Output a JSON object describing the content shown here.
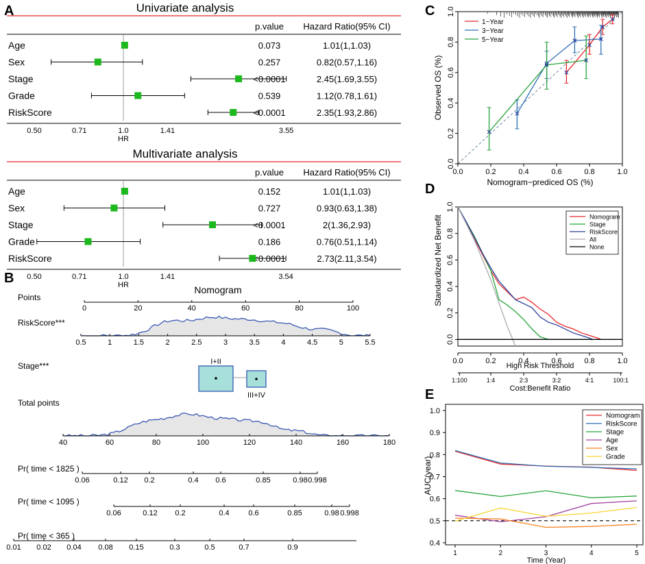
{
  "panel_labels": [
    "A",
    "B",
    "C",
    "D",
    "E"
  ],
  "chart_data": [
    {
      "id": "A1",
      "type": "forest",
      "title": "Univariate analysis",
      "col_pvalue": "p.value",
      "col_hr": "Hazard Ratio(95% CI)",
      "xlabel": "HR",
      "xticks": [
        "0.50",
        "0.71",
        "1.0",
        "1.41",
        "3.55"
      ],
      "xtick_values": [
        0.5,
        0.71,
        1.0,
        1.41,
        3.55
      ],
      "rows": [
        {
          "label": "Age",
          "p": "0.073",
          "hr_text": "1.01(1,1.03)",
          "hr": 1.01,
          "lo": 1.0,
          "hi": 1.03
        },
        {
          "label": "Sex",
          "p": "0.257",
          "hr_text": "0.82(0.57,1.16)",
          "hr": 0.82,
          "lo": 0.57,
          "hi": 1.16
        },
        {
          "label": "Stage",
          "p": "<0.0001",
          "hr_text": "2.45(1.69,3.55)",
          "hr": 2.45,
          "lo": 1.69,
          "hi": 3.55
        },
        {
          "label": "Grade",
          "p": "0.539",
          "hr_text": "1.12(0.78,1.61)",
          "hr": 1.12,
          "lo": 0.78,
          "hi": 1.61
        },
        {
          "label": "RiskScore",
          "p": "<0.0001",
          "hr_text": "2.35(1.93,2.86)",
          "hr": 2.35,
          "lo": 1.93,
          "hi": 2.86
        }
      ]
    },
    {
      "id": "A2",
      "type": "forest",
      "title": "Multivariate analysis",
      "col_pvalue": "p.value",
      "col_hr": "Hazard Ratio(95% CI)",
      "xlabel": "HR",
      "xticks": [
        "0.50",
        "0.71",
        "1.0",
        "1.41",
        "3.54"
      ],
      "xtick_values": [
        0.5,
        0.71,
        1.0,
        1.41,
        3.54
      ],
      "rows": [
        {
          "label": "Age",
          "p": "0.152",
          "hr_text": "1.01(1,1.03)",
          "hr": 1.01,
          "lo": 1.0,
          "hi": 1.03
        },
        {
          "label": "Sex",
          "p": "0.727",
          "hr_text": "0.93(0.63,1.38)",
          "hr": 0.93,
          "lo": 0.63,
          "hi": 1.38
        },
        {
          "label": "Stage",
          "p": "<0.0001",
          "hr_text": "2(1.36,2.93)",
          "hr": 2.0,
          "lo": 1.36,
          "hi": 2.93
        },
        {
          "label": "Grade",
          "p": "0.186",
          "hr_text": "0.76(0.51,1.14)",
          "hr": 0.76,
          "lo": 0.51,
          "hi": 1.14
        },
        {
          "label": "RiskScore",
          "p": "<0.0001",
          "hr_text": "2.73(2.11,3.54)",
          "hr": 2.73,
          "lo": 2.11,
          "hi": 3.54
        }
      ]
    },
    {
      "id": "B",
      "type": "nomogram",
      "title": "Nomogram",
      "rows": [
        {
          "label": "Points",
          "kind": "axis",
          "dmin": 0,
          "dmax": 100,
          "ticks": [
            0,
            20,
            40,
            60,
            80,
            100
          ],
          "tick_labels": [
            "0",
            "20",
            "40",
            "60",
            "80",
            "100"
          ]
        },
        {
          "label": "RiskScore***",
          "kind": "density",
          "dmin": 0.5,
          "dmax": 5.5,
          "ticks": [
            0.5,
            1,
            1.5,
            2,
            2.5,
            3,
            3.5,
            4,
            4.5,
            5,
            5.5
          ],
          "tick_labels": [
            "0.5",
            "1",
            "1.5",
            "2",
            "2.5",
            "3",
            "3.5",
            "4",
            "4.5",
            "5",
            "5.5"
          ]
        },
        {
          "label": "Stage***",
          "kind": "boxes",
          "categories": [
            "I+II",
            "III+IV"
          ],
          "points": [
            48,
            64
          ]
        },
        {
          "label": "Total points",
          "kind": "density",
          "dmin": 40,
          "dmax": 180,
          "ticks": [
            40,
            60,
            80,
            100,
            120,
            140,
            160,
            180
          ],
          "tick_labels": [
            "40",
            "60",
            "80",
            "100",
            "120",
            "140",
            "160",
            "180"
          ]
        },
        {
          "label": "Pr( time < 1825 )",
          "kind": "prob",
          "tick_labels": [
            "0.06",
            "0.12",
            "0.2",
            "0.4",
            "0.6",
            "0.85",
            "0.98",
            "0.998"
          ]
        },
        {
          "label": "Pr( time < 1095 )",
          "kind": "prob",
          "tick_labels": [
            "0.06",
            "0.12",
            "0.2",
            "0.4",
            "0.6",
            "0.85",
            "0.98",
            "0.998"
          ]
        },
        {
          "label": "Pr( time < 365 )",
          "kind": "prob",
          "tick_labels": [
            "0.01",
            "0.02",
            "0.04",
            "0.08",
            "0.15",
            "0.3",
            "0.5",
            "0.7",
            "0.9"
          ]
        }
      ]
    },
    {
      "id": "C",
      "type": "line",
      "xlabel": "Nomogram−prediced OS (%)",
      "ylabel": "Observed OS (%)",
      "xlim": [
        0,
        1
      ],
      "ylim": [
        0,
        1
      ],
      "xticks": [
        "0.0",
        "0.2",
        "0.4",
        "0.6",
        "0.8",
        "1.0"
      ],
      "yticks": [
        "0.0",
        "0.2",
        "0.4",
        "0.6",
        "0.8",
        "1.0"
      ],
      "series": [
        {
          "name": "1−Year",
          "color": "#e8262a",
          "x": [
            0.66,
            0.8,
            0.88,
            0.94
          ],
          "y": [
            0.6,
            0.78,
            0.9,
            0.95
          ],
          "lo": [
            0.53,
            0.72,
            0.85,
            0.92
          ],
          "hi": [
            0.68,
            0.85,
            0.95,
            0.98
          ]
        },
        {
          "name": "3−Year",
          "color": "#2a6fb5",
          "x": [
            0.36,
            0.54,
            0.71,
            0.87
          ],
          "y": [
            0.33,
            0.66,
            0.81,
            0.82
          ],
          "lo": [
            0.23,
            0.56,
            0.73,
            0.72
          ],
          "hi": [
            0.42,
            0.74,
            0.9,
            0.91
          ]
        },
        {
          "name": "5−Year",
          "color": "#24a33a",
          "x": [
            0.19,
            0.54,
            0.78
          ],
          "y": [
            0.21,
            0.65,
            0.68
          ],
          "lo": [
            0.09,
            0.49,
            0.56
          ],
          "hi": [
            0.37,
            0.8,
            0.84
          ]
        }
      ]
    },
    {
      "id": "D",
      "type": "line",
      "xlabel": "High Risk Threshold",
      "ylabel": "Standardized Net Benefit",
      "second_axis_label": "Cost:Benefit Ratio",
      "xlim": [
        0,
        1
      ],
      "ylim": [
        -0.05,
        1
      ],
      "xticks": [
        "0.0",
        "0.2",
        "0.4",
        "0.6",
        "0.8",
        "1.0"
      ],
      "yticks": [
        "0.0",
        "0.2",
        "0.4",
        "0.6",
        "0.8",
        "1.0"
      ],
      "cost_benefit_ticks": [
        "1:100",
        "1:4",
        "2:3",
        "3:2",
        "4:1",
        "100:1"
      ],
      "series": [
        {
          "name": "Nomogram",
          "color": "#e8262a",
          "x": [
            0,
            0.05,
            0.1,
            0.15,
            0.2,
            0.25,
            0.3,
            0.35,
            0.4,
            0.45,
            0.5,
            0.55,
            0.6,
            0.65,
            0.7,
            0.75,
            0.8,
            0.85,
            0.87
          ],
          "y": [
            1.0,
            0.88,
            0.76,
            0.64,
            0.52,
            0.42,
            0.36,
            0.3,
            0.32,
            0.28,
            0.23,
            0.19,
            0.13,
            0.1,
            0.08,
            0.05,
            0.03,
            0.01,
            0.0
          ]
        },
        {
          "name": "Stage",
          "color": "#24a33a",
          "x": [
            0,
            0.1,
            0.2,
            0.25,
            0.3,
            0.35,
            0.4,
            0.45,
            0.5,
            0.55,
            0.6,
            0.7,
            0.8
          ],
          "y": [
            1.0,
            0.78,
            0.52,
            0.3,
            0.26,
            0.21,
            0.15,
            0.08,
            0.02,
            0.0,
            0.0,
            0.0,
            0.0
          ]
        },
        {
          "name": "RiskScore",
          "color": "#2a3f9a",
          "x": [
            0,
            0.05,
            0.1,
            0.15,
            0.2,
            0.25,
            0.3,
            0.35,
            0.4,
            0.45,
            0.5,
            0.55,
            0.6,
            0.65,
            0.7,
            0.75,
            0.8,
            0.82
          ],
          "y": [
            1.0,
            0.89,
            0.77,
            0.65,
            0.54,
            0.44,
            0.37,
            0.3,
            0.27,
            0.24,
            0.17,
            0.13,
            0.11,
            0.08,
            0.05,
            0.03,
            0.01,
            0.0
          ]
        },
        {
          "name": "All",
          "color": "#aaaaaa",
          "x": [
            0,
            0.1,
            0.2,
            0.3,
            0.35
          ],
          "y": [
            1.0,
            0.75,
            0.45,
            0.1,
            -0.05
          ]
        },
        {
          "name": "None",
          "color": "#000000",
          "x": [
            0,
            1
          ],
          "y": [
            0,
            0
          ]
        }
      ]
    },
    {
      "id": "E",
      "type": "line",
      "xlabel": "Time (Year)",
      "ylabel": "AUC(year)",
      "xlim": [
        1,
        5
      ],
      "ylim": [
        0.4,
        1.0
      ],
      "xticks": [
        "1",
        "2",
        "3",
        "4",
        "5"
      ],
      "yticks": [
        "0.4",
        "0.5",
        "0.6",
        "0.7",
        "0.8",
        "0.9",
        "1.0"
      ],
      "reference_line": 0.5,
      "series": [
        {
          "name": "Nomogram",
          "color": "#e8262a",
          "x": [
            1,
            2,
            3,
            4,
            5
          ],
          "y": [
            0.815,
            0.757,
            0.748,
            0.743,
            0.728
          ]
        },
        {
          "name": "RiskScore",
          "color": "#2a6fb5",
          "x": [
            1,
            2,
            3,
            4,
            5
          ],
          "y": [
            0.818,
            0.762,
            0.747,
            0.742,
            0.735
          ]
        },
        {
          "name": "Stage",
          "color": "#24a33a",
          "x": [
            1,
            2,
            3,
            4,
            5
          ],
          "y": [
            0.637,
            0.61,
            0.636,
            0.604,
            0.612
          ]
        },
        {
          "name": "Age",
          "color": "#a040a0",
          "x": [
            1,
            2,
            3,
            4,
            5
          ],
          "y": [
            0.525,
            0.495,
            0.518,
            0.578,
            0.59
          ]
        },
        {
          "name": "Sex",
          "color": "#f58220",
          "x": [
            1,
            2,
            3,
            4,
            5
          ],
          "y": [
            0.512,
            0.508,
            0.47,
            0.474,
            0.484
          ]
        },
        {
          "name": "Grade",
          "color": "#f7d631",
          "x": [
            1,
            2,
            3,
            4,
            5
          ],
          "y": [
            0.498,
            0.558,
            0.52,
            0.535,
            0.56
          ]
        }
      ]
    }
  ]
}
